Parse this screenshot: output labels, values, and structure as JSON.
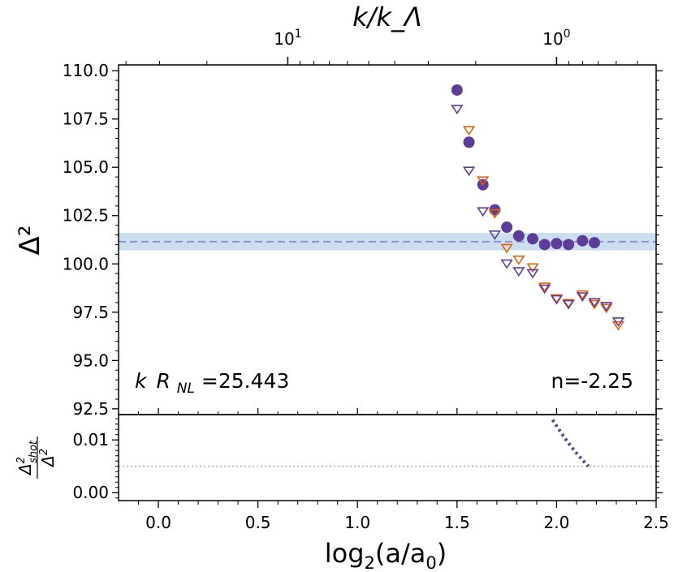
{
  "chart_data": [
    {
      "type": "scatter",
      "panel": "main",
      "ylabel": "Δ²",
      "top_xlabel": "k/k_Λ",
      "xlim": [
        -0.2,
        2.5
      ],
      "ylim": [
        92.2,
        110.3
      ],
      "yticks": [
        92.5,
        95.0,
        97.5,
        100.0,
        102.5,
        105.0,
        107.5,
        110.0
      ],
      "ytick_labels": [
        "92.5",
        "95.0",
        "97.5",
        "100.0",
        "102.5",
        "105.0",
        "107.5",
        "110.0"
      ],
      "top_ticks": [
        {
          "value": 10,
          "base": "10",
          "exp": "1"
        },
        {
          "value": 1,
          "base": "10",
          "exp": "0"
        }
      ],
      "top_axis_pivot_x": 2.0,
      "top_axis_log2_per_decade": 1.35,
      "reference_line": {
        "y": 101.15,
        "band": [
          100.7,
          101.6
        ],
        "color": "#8f8fd9",
        "band_color": "#c3d9ee"
      },
      "annotations": {
        "left_prefix": "k",
        "left_sub_var": "R",
        "left_sub": "NL",
        "left_value": "=25.443",
        "right": "n=-2.25"
      },
      "series": [
        {
          "name": "filled circles",
          "marker": "circle",
          "color": "#5e3c99",
          "x": [
            1.5,
            1.56,
            1.63,
            1.69,
            1.75,
            1.81,
            1.88,
            1.94,
            2.0,
            2.06,
            2.13,
            2.19
          ],
          "y": [
            109.0,
            106.3,
            104.1,
            102.8,
            101.9,
            101.45,
            101.3,
            101.0,
            101.05,
            101.0,
            101.2,
            101.1
          ]
        },
        {
          "name": "orange triangles",
          "marker": "triangle-down-open",
          "color": "#e66101",
          "x": [
            1.56,
            1.63,
            1.69,
            1.75,
            1.81,
            1.88,
            1.94,
            2.0,
            2.06,
            2.13,
            2.19,
            2.25,
            2.31
          ],
          "y": [
            106.9,
            104.3,
            102.6,
            100.8,
            100.2,
            99.8,
            98.8,
            98.2,
            97.95,
            98.4,
            97.9,
            97.7,
            96.8
          ]
        },
        {
          "name": "purple triangles",
          "marker": "triangle-down-open",
          "color": "#5e3c99",
          "x": [
            1.5,
            1.56,
            1.63,
            1.69,
            1.75,
            1.81,
            1.88,
            1.94,
            2.0,
            2.06,
            2.13,
            2.19,
            2.25,
            2.31
          ],
          "y": [
            108.0,
            104.8,
            102.7,
            101.5,
            100.0,
            99.6,
            99.5,
            98.7,
            98.15,
            97.9,
            98.3,
            98.0,
            97.8,
            97.0
          ]
        }
      ]
    },
    {
      "type": "line",
      "panel": "residual",
      "ylabel_num": "Δ",
      "ylabel_num_sup": "2",
      "ylabel_num_sub": "shot",
      "ylabel_den": "Δ",
      "ylabel_den_sup": "2",
      "xlabel_pre": "log",
      "xlabel_sub": "2",
      "xlabel_post": "(a/a",
      "xlabel_post_sub": "0",
      "xlabel_close": ")",
      "xlim": [
        -0.2,
        2.5
      ],
      "ylim": [
        -0.0015,
        0.0148
      ],
      "xticks": [
        0.0,
        0.5,
        1.0,
        1.5,
        2.0,
        2.5
      ],
      "xtick_labels": [
        "0.0",
        "0.5",
        "1.0",
        "1.5",
        "2.0",
        "2.5"
      ],
      "yticks": [
        0.0,
        0.01
      ],
      "ytick_labels": [
        "0.00",
        "0.01"
      ],
      "reference_line": {
        "y": 0.005,
        "color": "#b3b3b3"
      },
      "series": [
        {
          "name": "shot noise ratio",
          "style": "dotted",
          "color": "#5e3c99",
          "x": [
            1.98,
            2.01,
            2.04,
            2.07,
            2.1,
            2.13,
            2.16
          ],
          "y": [
            0.0138,
            0.0121,
            0.0104,
            0.0089,
            0.0075,
            0.0062,
            0.005
          ]
        }
      ]
    }
  ]
}
